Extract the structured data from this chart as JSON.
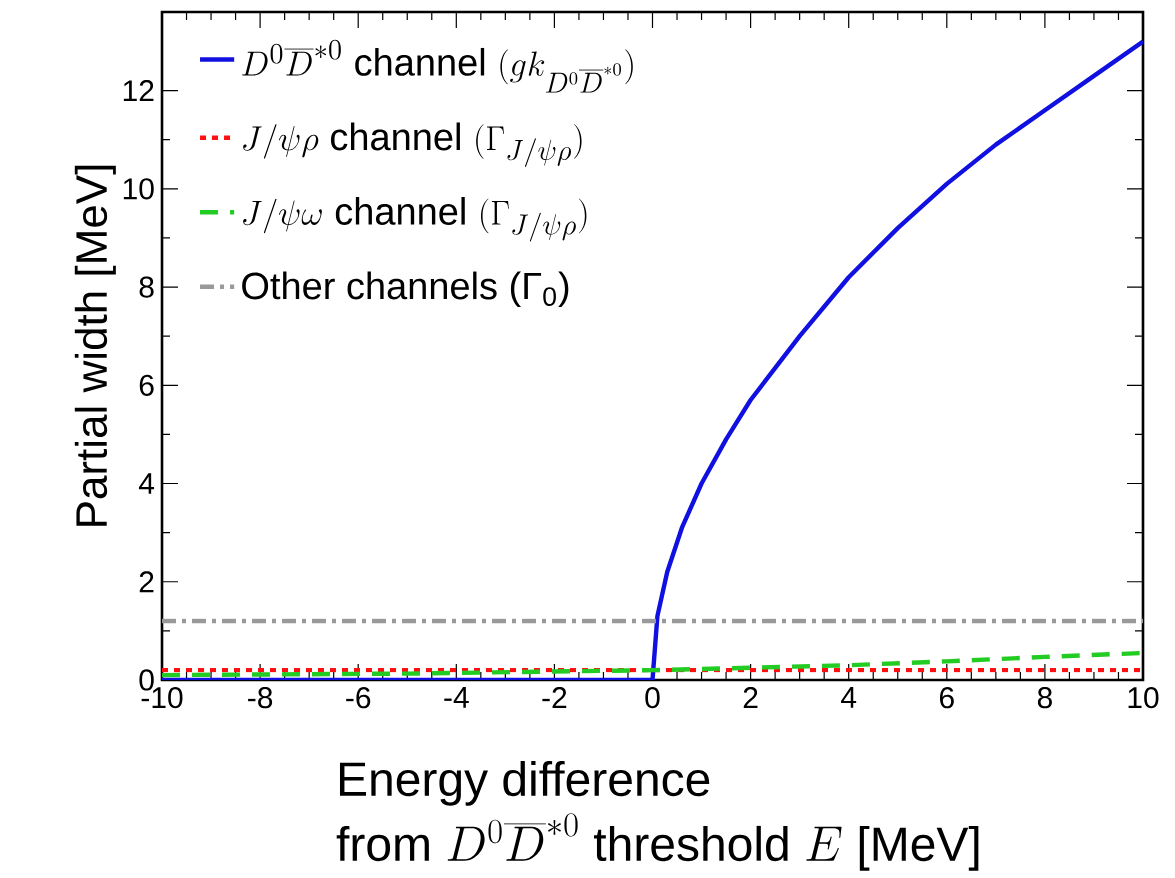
{
  "chart_data": {
    "type": "line",
    "xlabel": "\\begin{array}{l}\\textsf{Energy difference}\\\\ \\textsf{from }D^0\\overline{D}^{*0}\\textsf{ threshold }E\\textsf{ [MeV]}\\end{array}",
    "ylabel": "Partial width [MeV]",
    "xlim": [
      -10,
      10
    ],
    "ylim": [
      0,
      13.6
    ],
    "xticks": [
      -10,
      -8,
      -6,
      -4,
      -2,
      0,
      2,
      4,
      6,
      8,
      10
    ],
    "yticks": [
      0,
      2,
      4,
      6,
      8,
      10,
      12
    ],
    "legend": "top left",
    "grid": false,
    "series": [
      {
        "name": "D^0\\overline{D}^{*0}\\textsf{ channel }(gk_{D^0\\overline{D}^{*0}})",
        "color": "#1010e0",
        "line_style": "solid",
        "x": [
          -10,
          -5,
          0,
          0.1,
          0.3,
          0.6,
          1,
          1.5,
          2,
          3,
          4,
          5,
          6,
          7,
          8,
          9,
          10
        ],
        "values": [
          0,
          0,
          0,
          1.3,
          2.2,
          3.1,
          4.0,
          4.9,
          5.7,
          7.0,
          8.2,
          9.2,
          10.1,
          10.9,
          11.6,
          12.3,
          13.0
        ]
      },
      {
        "name": "J/\\psi\\rho\\textsf{ channel }(\\Gamma_{J/\\psi\\rho})",
        "color": "#ff1010",
        "line_style": "dotted",
        "x": [
          -10,
          10
        ],
        "values": [
          0.2,
          0.2
        ]
      },
      {
        "name": "J/\\psi\\omega\\textsf{ channel }(\\Gamma_{J/\\psi\\rho})",
        "color": "#22cc22",
        "line_style": "dashed",
        "x": [
          -10,
          -5,
          0,
          2,
          4,
          6,
          8,
          10
        ],
        "values": [
          0.1,
          0.13,
          0.2,
          0.25,
          0.3,
          0.38,
          0.47,
          0.55
        ]
      },
      {
        "name": "Other channels (Γ$_{0}$)",
        "color": "#999999",
        "line_style": "dashdot",
        "x": [
          -10,
          10
        ],
        "values": [
          1.2,
          1.2
        ]
      }
    ]
  }
}
